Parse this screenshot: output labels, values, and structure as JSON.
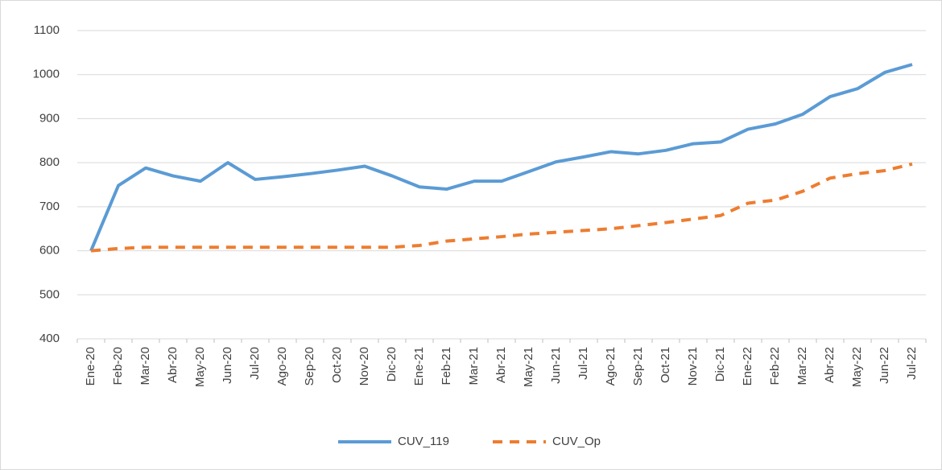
{
  "chart_data": {
    "type": "line",
    "categories": [
      "Ene-20",
      "Feb-20",
      "Mar-20",
      "Abr-20",
      "May-20",
      "Jun-20",
      "Jul-20",
      "Ago-20",
      "Sep-20",
      "Oct-20",
      "Nov-20",
      "Dic-20",
      "Ene-21",
      "Feb-21",
      "Mar-21",
      "Abr-21",
      "May-21",
      "Jun-21",
      "Jul-21",
      "Ago-21",
      "Sep-21",
      "Oct-21",
      "Nov-21",
      "Dic-21",
      "Ene-22",
      "Feb-22",
      "Mar-22",
      "Abr-22",
      "May-22",
      "Jun-22",
      "Jul-22"
    ],
    "series": [
      {
        "name": "CUV_119",
        "color": "#5b9bd5",
        "dashed": false,
        "values": [
          600,
          748,
          788,
          770,
          758,
          800,
          762,
          768,
          775,
          783,
          792,
          770,
          745,
          740,
          758,
          758,
          780,
          802,
          813,
          825,
          820,
          828,
          843,
          847,
          876,
          888,
          910,
          950,
          968,
          1005,
          1023
        ]
      },
      {
        "name": "CUV_Op",
        "color": "#ed7d31",
        "dashed": true,
        "values": [
          600,
          605,
          608,
          608,
          608,
          608,
          608,
          608,
          608,
          608,
          608,
          608,
          612,
          622,
          627,
          632,
          638,
          642,
          646,
          650,
          657,
          664,
          672,
          680,
          708,
          715,
          735,
          765,
          775,
          782,
          797
        ]
      }
    ],
    "ylim": [
      400,
      1100
    ],
    "yticks": [
      400,
      500,
      600,
      700,
      800,
      900,
      1000,
      1100
    ],
    "grid": true,
    "legend": "bottom"
  }
}
